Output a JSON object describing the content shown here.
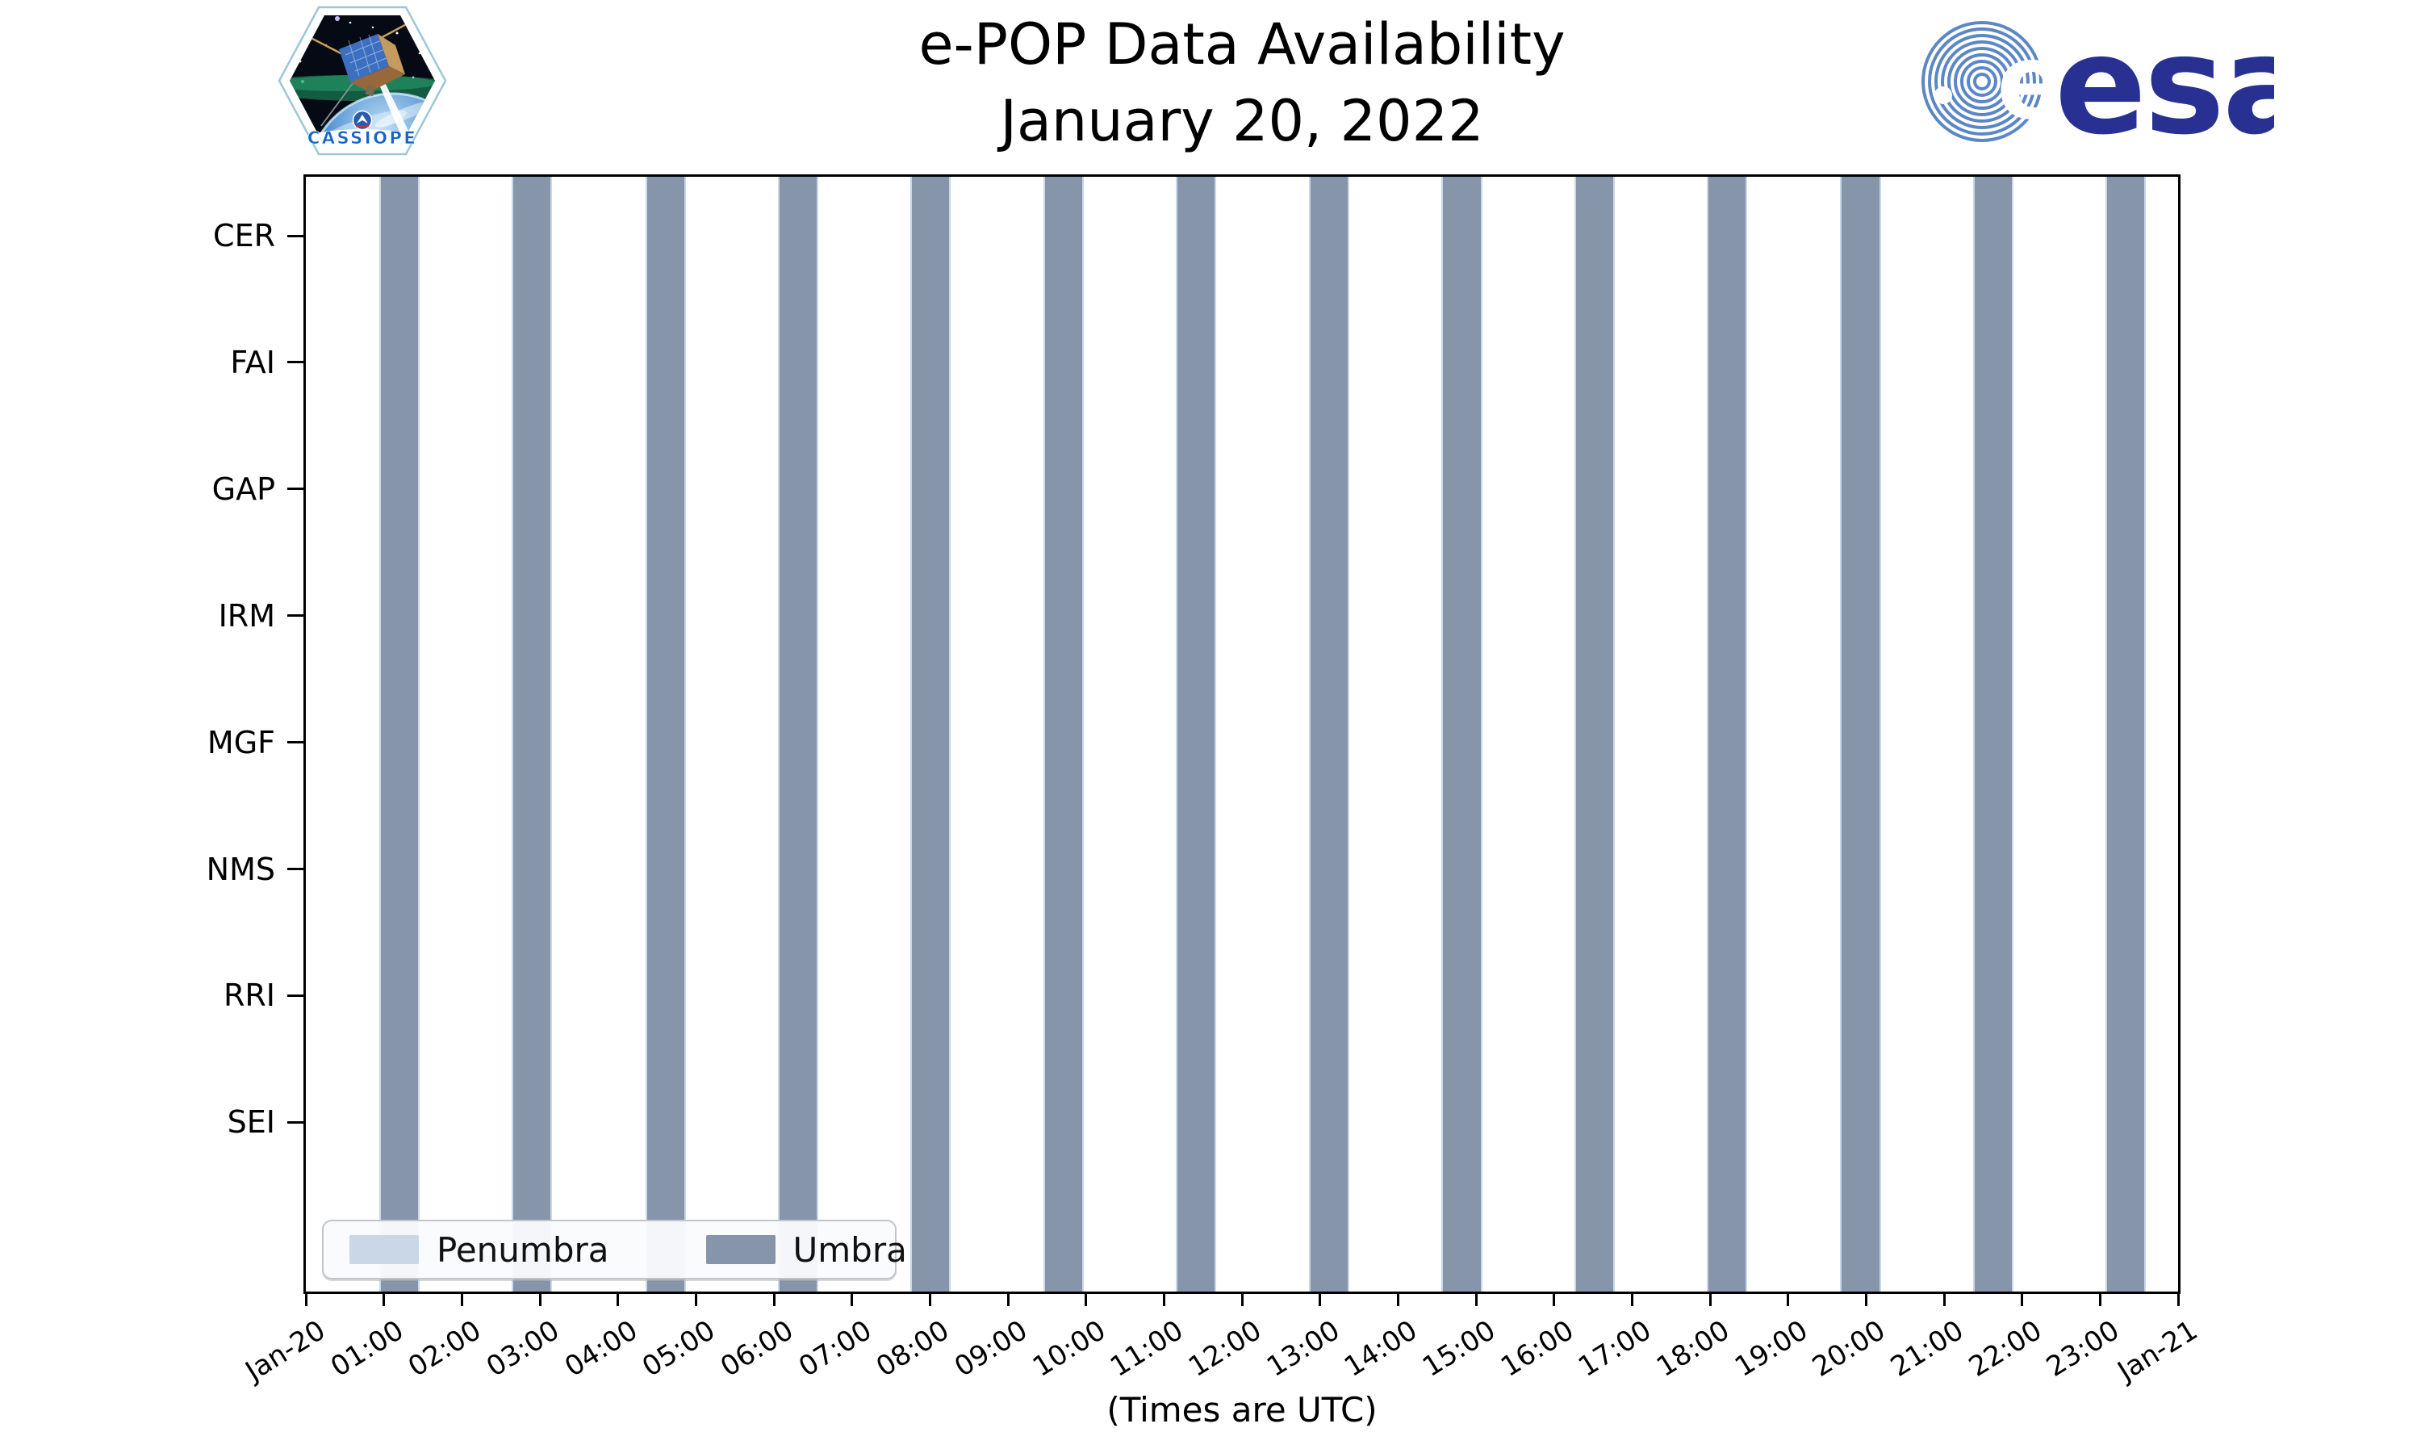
{
  "logos": {
    "cassiope_label": "CASSIOPE",
    "esa_label": "esa",
    "esa_navy": "#283191",
    "esa_stripe_blue": "#5b87c5",
    "patch_outline": "#9cc7d6",
    "patch_text_blue": "#1565c8"
  },
  "chart_data": {
    "type": "bar",
    "title": "e-POP Data Availability",
    "subtitle": "January 20, 2022",
    "xlabel": "(Times are UTC)",
    "x_range_hours": [
      0,
      24
    ],
    "x_tick_labels": [
      "Jan-20",
      "01:00",
      "02:00",
      "03:00",
      "04:00",
      "05:00",
      "06:00",
      "07:00",
      "08:00",
      "09:00",
      "10:00",
      "11:00",
      "12:00",
      "13:00",
      "14:00",
      "15:00",
      "16:00",
      "17:00",
      "18:00",
      "19:00",
      "20:00",
      "21:00",
      "22:00",
      "23:00",
      "Jan-21"
    ],
    "y_categories": [
      "CER",
      "FAI",
      "GAP",
      "IRM",
      "MGF",
      "NMS",
      "RRI",
      "SEI"
    ],
    "legend": [
      {
        "label": "Penumbra",
        "color": "#c9d7e6"
      },
      {
        "label": "Umbra",
        "color": "#8695a9"
      }
    ],
    "grid": false,
    "legend_position": "lower-left",
    "umbra_intervals_hours": [
      [
        0.97,
        1.43
      ],
      [
        2.67,
        3.13
      ],
      [
        4.38,
        4.84
      ],
      [
        6.08,
        6.54
      ],
      [
        7.78,
        8.24
      ],
      [
        9.48,
        9.94
      ],
      [
        11.18,
        11.64
      ],
      [
        12.89,
        13.35
      ],
      [
        14.59,
        15.05
      ],
      [
        16.29,
        16.75
      ],
      [
        17.99,
        18.45
      ],
      [
        19.7,
        20.16
      ],
      [
        21.4,
        21.86
      ],
      [
        23.1,
        23.56
      ]
    ],
    "penumbra_edge_hours": 0.03
  }
}
